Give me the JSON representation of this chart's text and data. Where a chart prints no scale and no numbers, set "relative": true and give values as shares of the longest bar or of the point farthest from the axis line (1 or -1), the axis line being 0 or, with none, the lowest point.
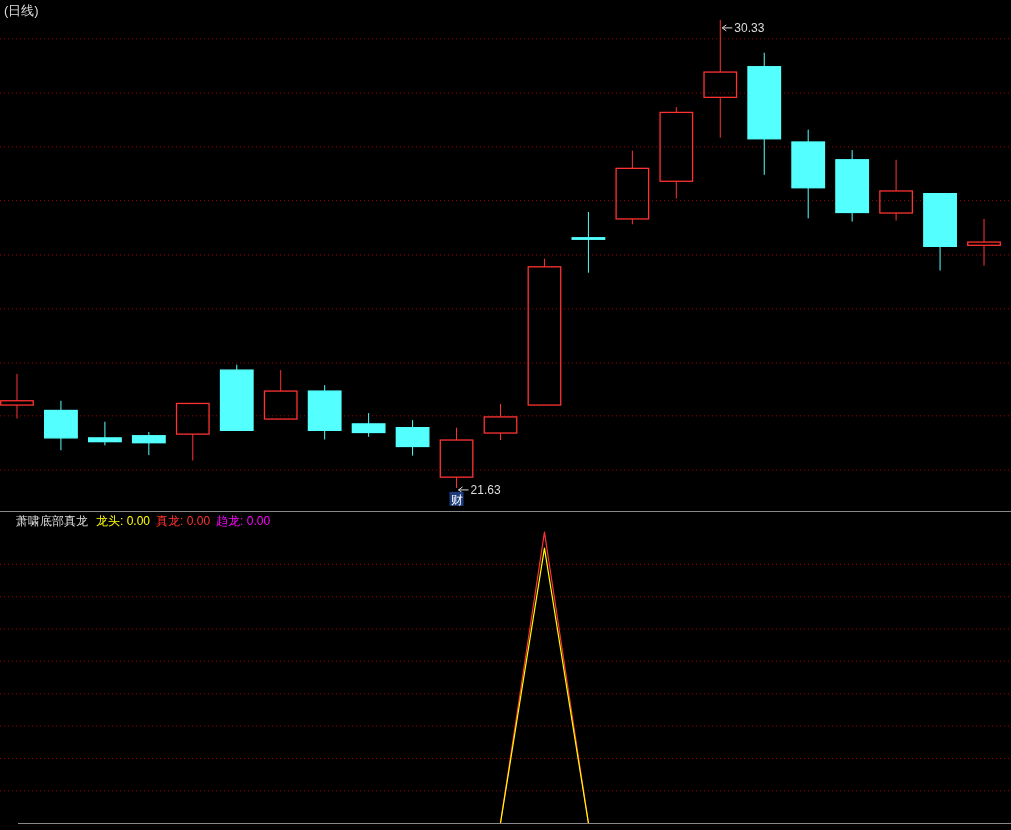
{
  "chart_data": [
    {
      "type": "candlestick",
      "title": "(日线)",
      "categories": [
        null,
        null,
        null,
        null,
        null,
        null,
        null,
        null,
        null,
        null,
        null,
        null,
        null,
        null,
        null,
        null,
        null,
        null,
        null,
        null,
        null,
        null,
        null
      ],
      "ohlc": [
        [
          23.17,
          23.75,
          22.92,
          23.25
        ],
        [
          23.07,
          23.25,
          22.33,
          22.56
        ],
        [
          22.56,
          22.86,
          22.42,
          22.49
        ],
        [
          22.6,
          22.67,
          22.24,
          22.47
        ],
        [
          22.63,
          23.2,
          22.14,
          23.2
        ],
        [
          23.82,
          23.92,
          22.7,
          22.7
        ],
        [
          22.91,
          23.82,
          22.91,
          23.43
        ],
        [
          23.43,
          23.54,
          22.53,
          22.7
        ],
        [
          22.82,
          23.02,
          22.58,
          22.66
        ],
        [
          22.75,
          22.89,
          22.23,
          22.4
        ],
        [
          21.83,
          22.75,
          21.63,
          22.52
        ],
        [
          22.65,
          23.19,
          22.52,
          22.95
        ],
        [
          23.17,
          25.89,
          23.17,
          25.74
        ],
        [
          26.28,
          26.76,
          25.63,
          26.26
        ],
        [
          26.63,
          27.9,
          26.53,
          27.57
        ],
        [
          27.33,
          28.71,
          27.01,
          28.61
        ],
        [
          28.89,
          30.33,
          28.14,
          29.36
        ],
        [
          29.46,
          29.72,
          27.45,
          28.12
        ],
        [
          28.06,
          28.29,
          26.64,
          27.21
        ],
        [
          27.73,
          27.91,
          26.58,
          26.75
        ],
        [
          26.74,
          27.73,
          26.6,
          27.15
        ],
        [
          27.1,
          27.11,
          25.67,
          26.12
        ],
        [
          26.14,
          26.63,
          25.76,
          26.2
        ]
      ],
      "colors": [
        "#ff3232",
        "#54ffff",
        "#54ffff",
        "#54ffff",
        "#ff3232",
        "#54ffff",
        "#ff3232",
        "#54ffff",
        "#54ffff",
        "#54ffff",
        "#ff3232",
        "#ff3232",
        "#ff3232",
        "#54ffff",
        "#ff3232",
        "#ff3232",
        "#ff3232",
        "#54ffff",
        "#54ffff",
        "#54ffff",
        "#ff3232",
        "#54ffff",
        "#ff3232"
      ],
      "yticks": [
        {
          "value": 21.96,
          "label": null
        },
        {
          "value": 22.97,
          "label": null
        },
        {
          "value": 23.95,
          "label": null
        },
        {
          "value": 24.96,
          "label": null
        },
        {
          "value": 25.96,
          "label": null
        },
        {
          "value": 26.97,
          "label": null
        },
        {
          "value": 27.97,
          "label": null
        },
        {
          "value": 28.97,
          "label": null
        },
        {
          "value": 29.98,
          "label": null
        }
      ],
      "grid": "y",
      "annotations": [
        "30.33",
        "21.63",
        "财"
      ]
    },
    {
      "type": "line",
      "title": "萧啸底部真龙",
      "relative": true,
      "categories": [
        null,
        null,
        null,
        null,
        null,
        null,
        null,
        null,
        null,
        null,
        null,
        null,
        null,
        null,
        null,
        null,
        null,
        null,
        null,
        null,
        null,
        null,
        null
      ],
      "series": [
        {
          "name": "龙头",
          "color": "#ffff00",
          "values": [
            null,
            null,
            null,
            null,
            null,
            null,
            null,
            null,
            null,
            null,
            null,
            0,
            0.945,
            0,
            null,
            null,
            null,
            null,
            null,
            null,
            null,
            null,
            null
          ]
        },
        {
          "name": "真龙",
          "color": "#ff3232",
          "values": [
            null,
            null,
            null,
            null,
            null,
            null,
            null,
            null,
            null,
            null,
            null,
            0,
            1,
            0,
            null,
            null,
            null,
            null,
            null,
            null,
            null,
            null,
            null
          ]
        },
        {
          "name": "趋龙",
          "color": "#ff00ff",
          "values": [
            null,
            null,
            null,
            null,
            null,
            null,
            null,
            null,
            null,
            null,
            null,
            null,
            null,
            null,
            null,
            null,
            null,
            null,
            null,
            null,
            null,
            null,
            null
          ]
        }
      ],
      "annotations": [
        ": 0.00",
        ": 0.00",
        ": 0.00"
      ],
      "ref_lines": [
        {
          "axis": "y",
          "value": 0.111,
          "label": null,
          "color": "#a00000",
          "line_style": "dotted"
        },
        {
          "axis": "y",
          "value": 0.222,
          "label": null,
          "color": "#a00000",
          "line_style": "dotted"
        },
        {
          "axis": "y",
          "value": 0.333,
          "label": null,
          "color": "#a00000",
          "line_style": "dotted"
        },
        {
          "axis": "y",
          "value": 0.444,
          "label": null,
          "color": "#a00000",
          "line_style": "dotted"
        },
        {
          "axis": "y",
          "value": 0.556,
          "label": null,
          "color": "#a00000",
          "line_style": "dotted"
        },
        {
          "axis": "y",
          "value": 0.667,
          "label": null,
          "color": "#a00000",
          "line_style": "dotted"
        },
        {
          "axis": "y",
          "value": 0.778,
          "label": null,
          "color": "#a00000",
          "line_style": "dotted"
        },
        {
          "axis": "y",
          "value": 0.889,
          "label": null,
          "color": "#a00000",
          "line_style": "dotted"
        }
      ],
      "legend": "top left"
    }
  ]
}
